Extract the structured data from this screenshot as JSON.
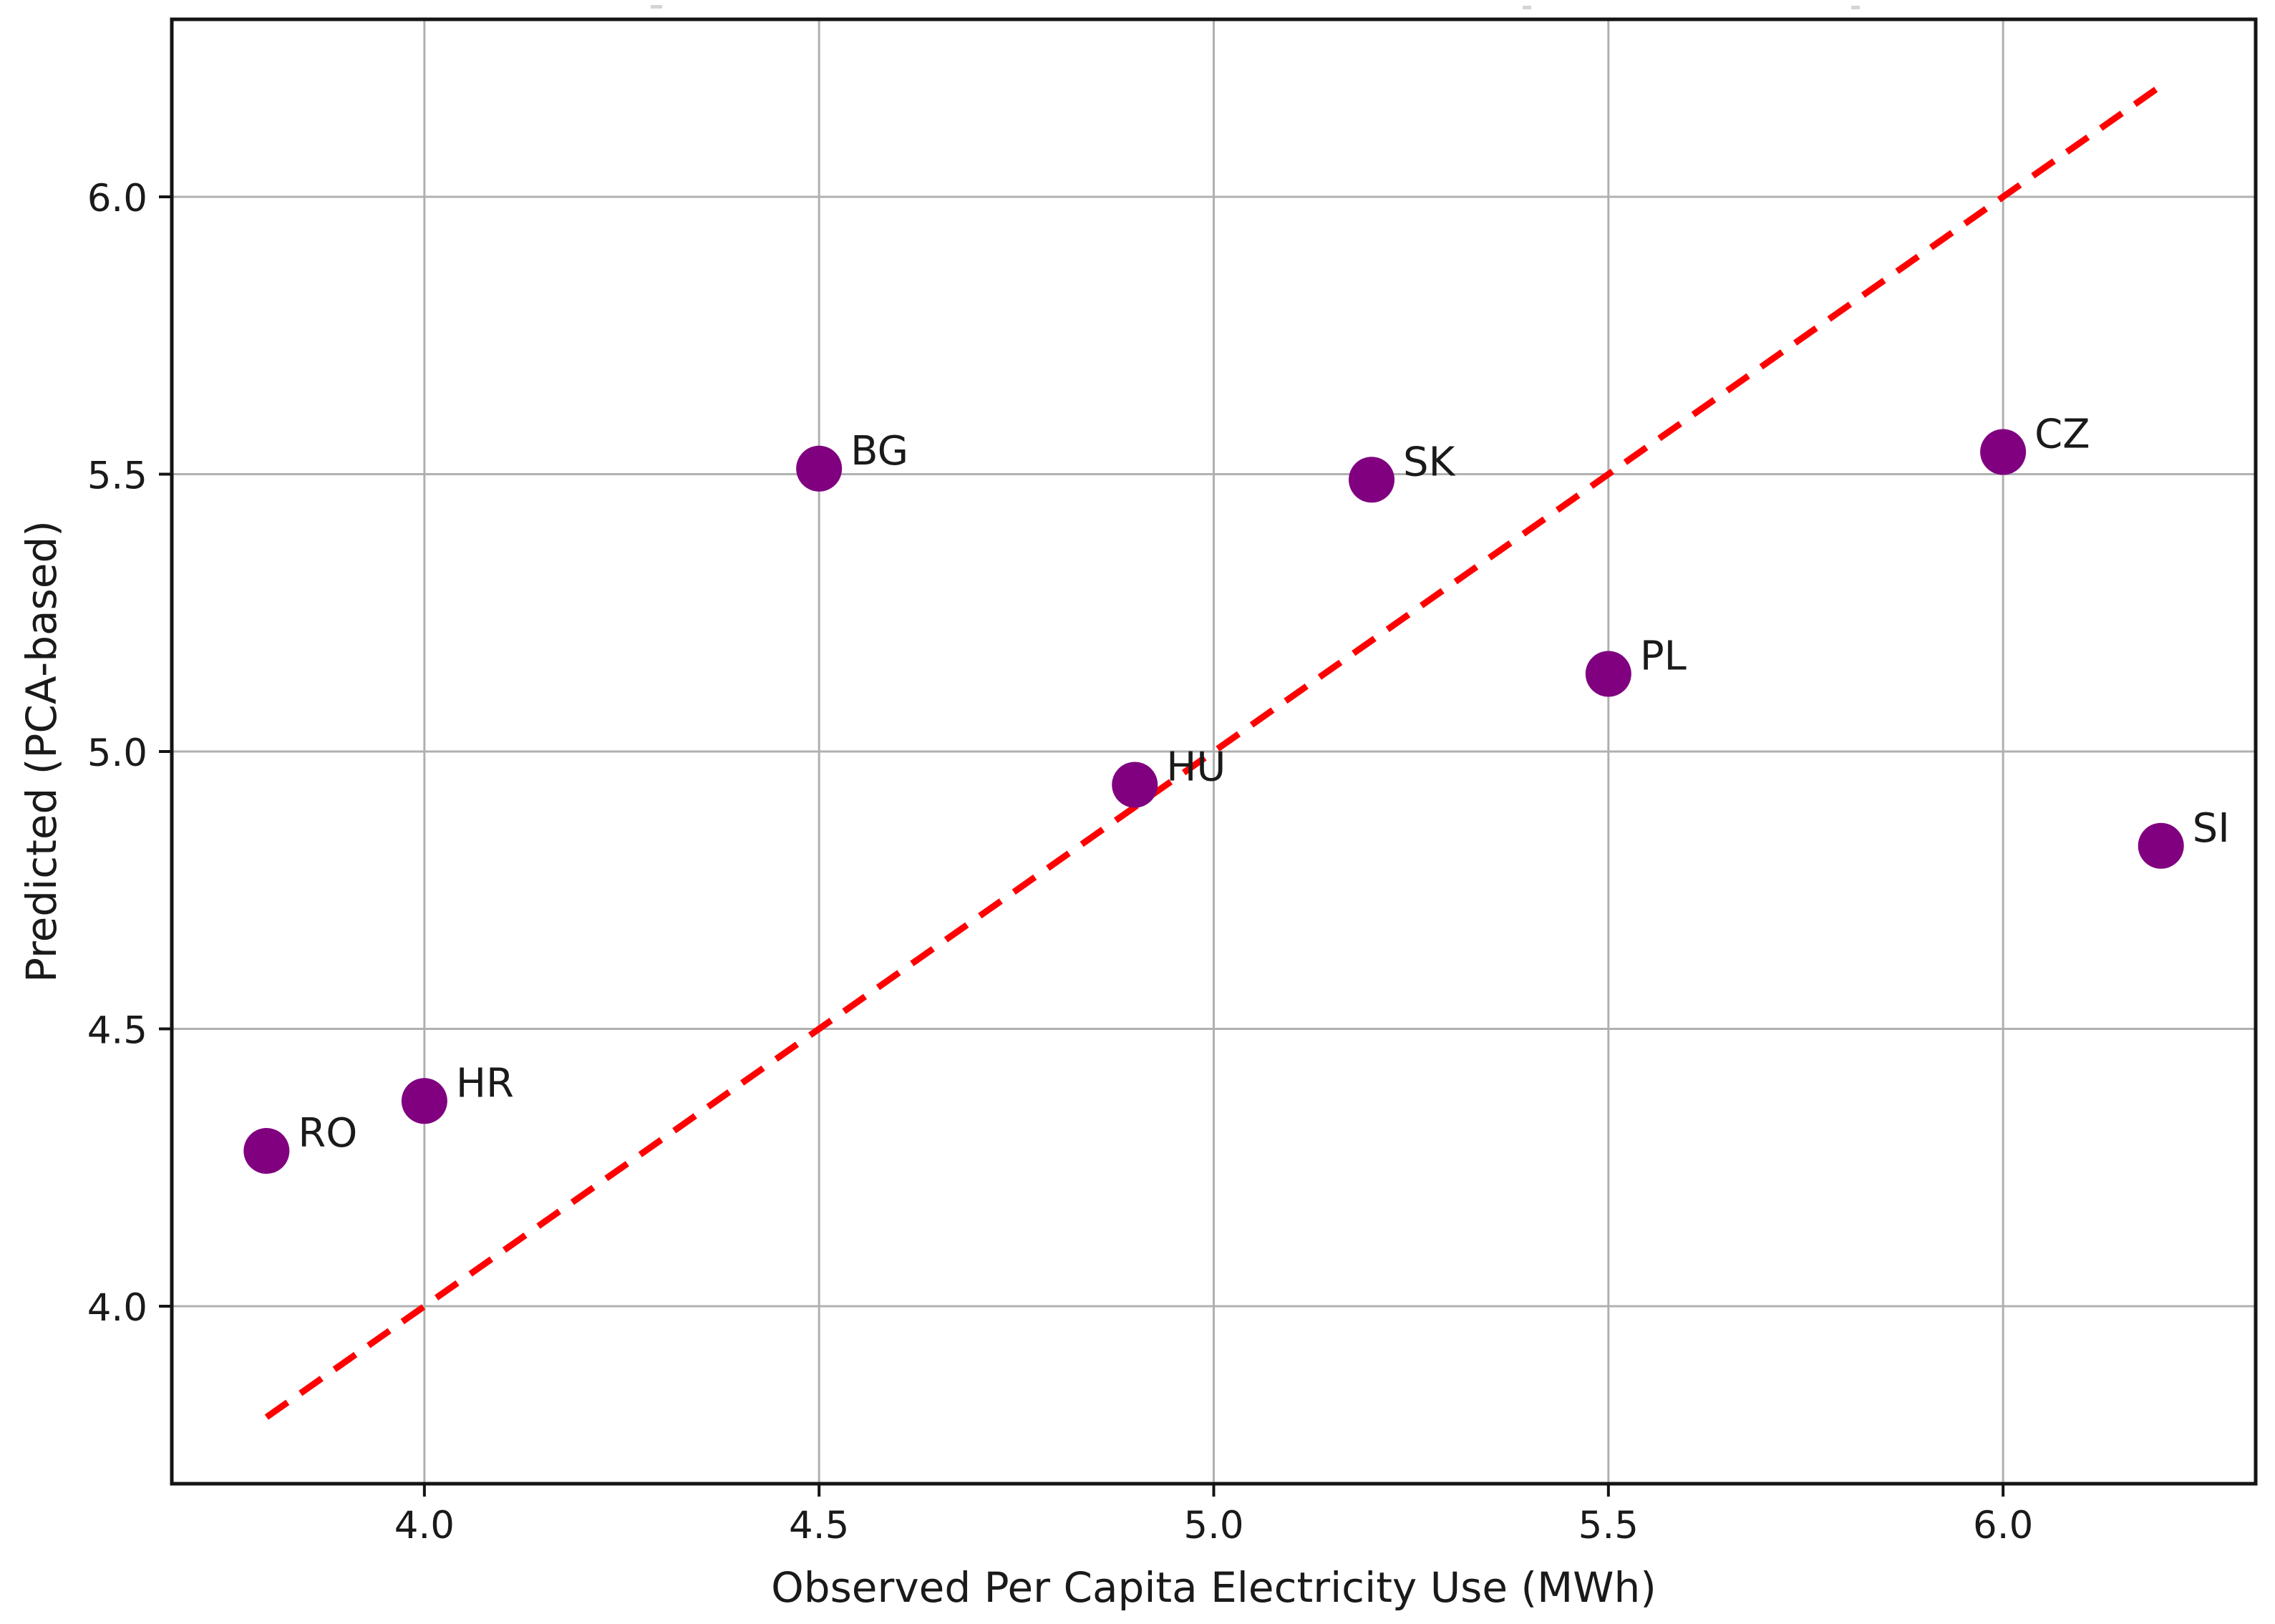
{
  "figure": {
    "background": "#ffffff"
  },
  "chart_data": {
    "type": "scatter",
    "title": "",
    "xlabel": "Observed Per Capita Electricity Use (MWh)",
    "ylabel": "Predicted (PCA-based)",
    "xlim": [
      3.68,
      6.32
    ],
    "ylim": [
      3.68,
      6.32
    ],
    "xticks": {
      "values": [
        4.0,
        4.5,
        5.0,
        5.5,
        6.0
      ],
      "labels": [
        "4.0",
        "4.5",
        "5.0",
        "5.5",
        "6.0"
      ]
    },
    "yticks": {
      "values": [
        4.0,
        4.5,
        5.0,
        5.5,
        6.0
      ],
      "labels": [
        "4.0",
        "4.5",
        "5.0",
        "5.5",
        "6.0"
      ]
    },
    "grid": true,
    "legend": false,
    "points": [
      {
        "label": "RO",
        "x": 3.8,
        "y": 4.28
      },
      {
        "label": "HR",
        "x": 4.0,
        "y": 4.37
      },
      {
        "label": "BG",
        "x": 4.5,
        "y": 5.51
      },
      {
        "label": "HU",
        "x": 4.9,
        "y": 4.94
      },
      {
        "label": "SK",
        "x": 5.2,
        "y": 5.49
      },
      {
        "label": "PL",
        "x": 5.5,
        "y": 5.14
      },
      {
        "label": "CZ",
        "x": 6.0,
        "y": 5.54
      },
      {
        "label": "SI",
        "x": 6.2,
        "y": 4.83
      }
    ],
    "identity_line": {
      "from": [
        3.8,
        3.8
      ],
      "to": [
        6.2,
        6.2
      ],
      "style": "dashed",
      "color": "#ff0000"
    },
    "colors": {
      "marker": "#800080",
      "grid": "#b0b0b0",
      "spine": "#141414",
      "text": "#1a1a1a",
      "background": "#ffffff"
    },
    "top_edge_marks": [
      {
        "x": 909,
        "y": 7,
        "w": 16,
        "h": 5
      },
      {
        "x": 2127,
        "y": 8,
        "w": 12,
        "h": 5
      },
      {
        "x": 2586,
        "y": 8,
        "w": 12,
        "h": 5
      }
    ]
  }
}
